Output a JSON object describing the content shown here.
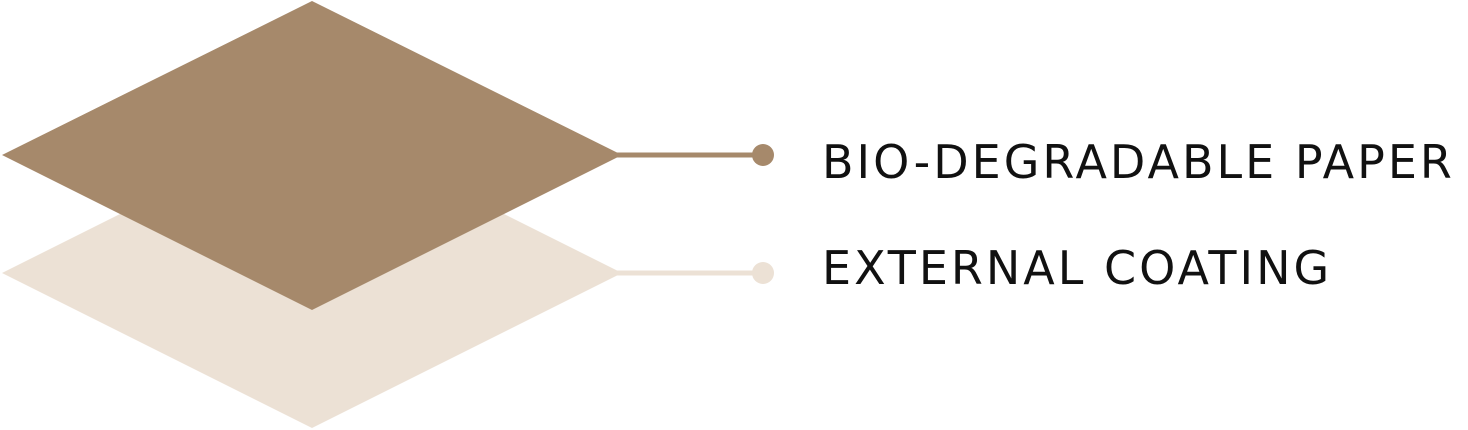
{
  "layers": [
    {
      "id": "external-coating",
      "label": "EXTERNAL COATING",
      "color": "#ece1d5"
    },
    {
      "id": "bio-degradable-paper",
      "label": "BIO-DEGRADABLE PAPER",
      "color": "#a6896b"
    }
  ],
  "text_color": "#111111"
}
